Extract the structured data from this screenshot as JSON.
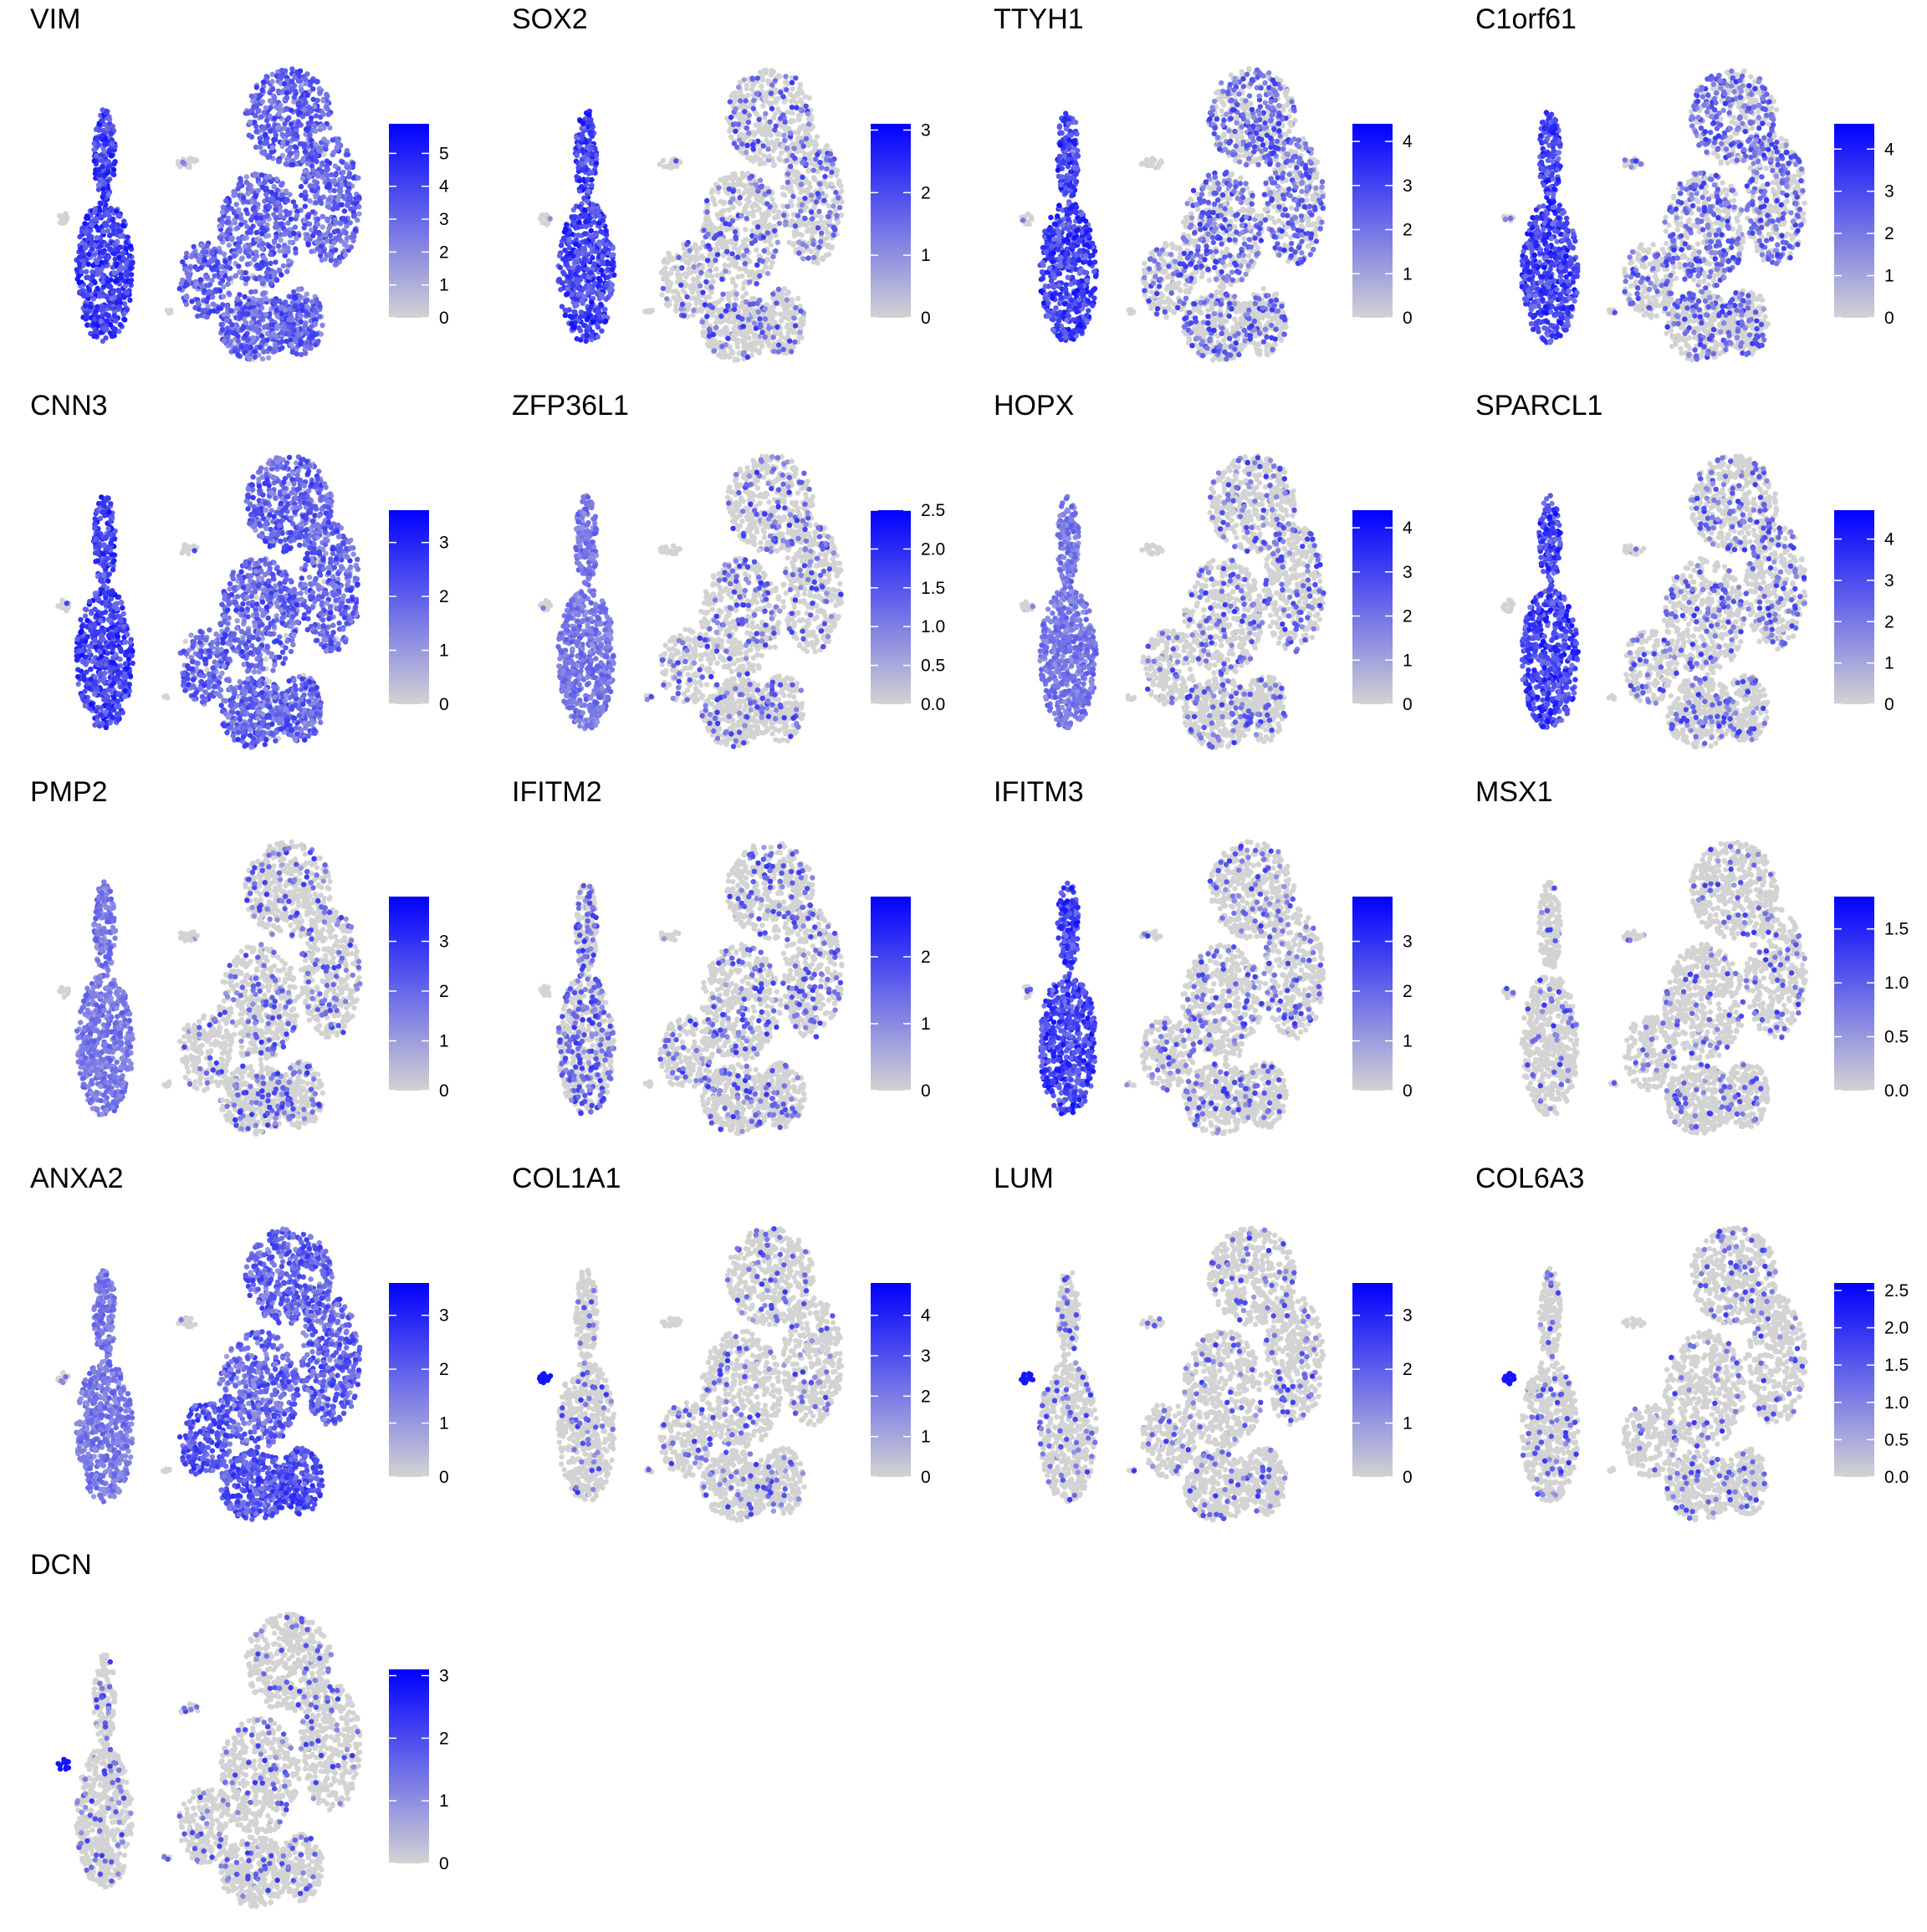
{
  "figure": {
    "palette": {
      "low": "#d3d3d3",
      "high": "#0000ff",
      "background": "#ffffff"
    }
  },
  "chart_data": [
    {
      "type": "scatter",
      "title": "VIM",
      "legend_ticks": [
        "0",
        "1",
        "2",
        "3",
        "4",
        "5"
      ],
      "legend_max": 5.9,
      "expression_pattern": "high-left cluster, moderate right clusters"
    },
    {
      "type": "scatter",
      "title": "SOX2",
      "legend_ticks": [
        "0",
        "1",
        "2",
        "3"
      ],
      "legend_max": 3.1,
      "expression_pattern": "high-left cluster, sparse right"
    },
    {
      "type": "scatter",
      "title": "TTYH1",
      "legend_ticks": [
        "0",
        "1",
        "2",
        "3",
        "4"
      ],
      "legend_max": 4.4,
      "expression_pattern": "high-left cluster, low right"
    },
    {
      "type": "scatter",
      "title": "C1orf61",
      "legend_ticks": [
        "0",
        "1",
        "2",
        "3",
        "4"
      ],
      "legend_max": 4.6,
      "expression_pattern": "high-left cluster, low right"
    },
    {
      "type": "scatter",
      "title": "CNN3",
      "legend_ticks": [
        "0",
        "1",
        "2",
        "3"
      ],
      "legend_max": 3.6,
      "expression_pattern": "high-left cluster, moderate right"
    },
    {
      "type": "scatter",
      "title": "ZFP36L1",
      "legend_ticks": [
        "0.0",
        "0.5",
        "1.0",
        "1.5",
        "2.0",
        "2.5"
      ],
      "legend_max": 2.5,
      "expression_pattern": "moderate-left cluster, sparse right"
    },
    {
      "type": "scatter",
      "title": "HOPX",
      "legend_ticks": [
        "0",
        "1",
        "2",
        "3",
        "4"
      ],
      "legend_max": 4.4,
      "expression_pattern": "moderate-left cluster, sparse right"
    },
    {
      "type": "scatter",
      "title": "SPARCL1",
      "legend_ticks": [
        "0",
        "1",
        "2",
        "3",
        "4"
      ],
      "legend_max": 4.7,
      "expression_pattern": "high-left cluster, sparse right"
    },
    {
      "type": "scatter",
      "title": "PMP2",
      "legend_ticks": [
        "0",
        "1",
        "2",
        "3"
      ],
      "legend_max": 3.9,
      "expression_pattern": "moderate-left cluster, sparse right"
    },
    {
      "type": "scatter",
      "title": "IFITM2",
      "legend_ticks": [
        "0",
        "1",
        "2"
      ],
      "legend_max": 2.9,
      "expression_pattern": "sparse left, sparse right"
    },
    {
      "type": "scatter",
      "title": "IFITM3",
      "legend_ticks": [
        "0",
        "1",
        "2",
        "3"
      ],
      "legend_max": 3.9,
      "expression_pattern": "high-left cluster, sparse right"
    },
    {
      "type": "scatter",
      "title": "MSX1",
      "legend_ticks": [
        "0.0",
        "0.5",
        "1.0",
        "1.5"
      ],
      "legend_max": 1.8,
      "expression_pattern": "sparse everywhere"
    },
    {
      "type": "scatter",
      "title": "ANXA2",
      "legend_ticks": [
        "0",
        "1",
        "2",
        "3"
      ],
      "legend_max": 3.6,
      "expression_pattern": "moderate left, high lower-right clusters"
    },
    {
      "type": "scatter",
      "title": "COL1A1",
      "legend_ticks": [
        "0",
        "1",
        "2",
        "3",
        "4"
      ],
      "legend_max": 4.8,
      "expression_pattern": "small isolated cluster only"
    },
    {
      "type": "scatter",
      "title": "LUM",
      "legend_ticks": [
        "0",
        "1",
        "2",
        "3"
      ],
      "legend_max": 3.6,
      "expression_pattern": "small isolated cluster only"
    },
    {
      "type": "scatter",
      "title": "COL6A3",
      "legend_ticks": [
        "0.0",
        "0.5",
        "1.0",
        "1.5",
        "2.0",
        "2.5"
      ],
      "legend_max": 2.6,
      "expression_pattern": "small isolated cluster only"
    },
    {
      "type": "scatter",
      "title": "DCN",
      "legend_ticks": [
        "0",
        "1",
        "2",
        "3"
      ],
      "legend_max": 3.1,
      "expression_pattern": "small isolated cluster only"
    }
  ]
}
